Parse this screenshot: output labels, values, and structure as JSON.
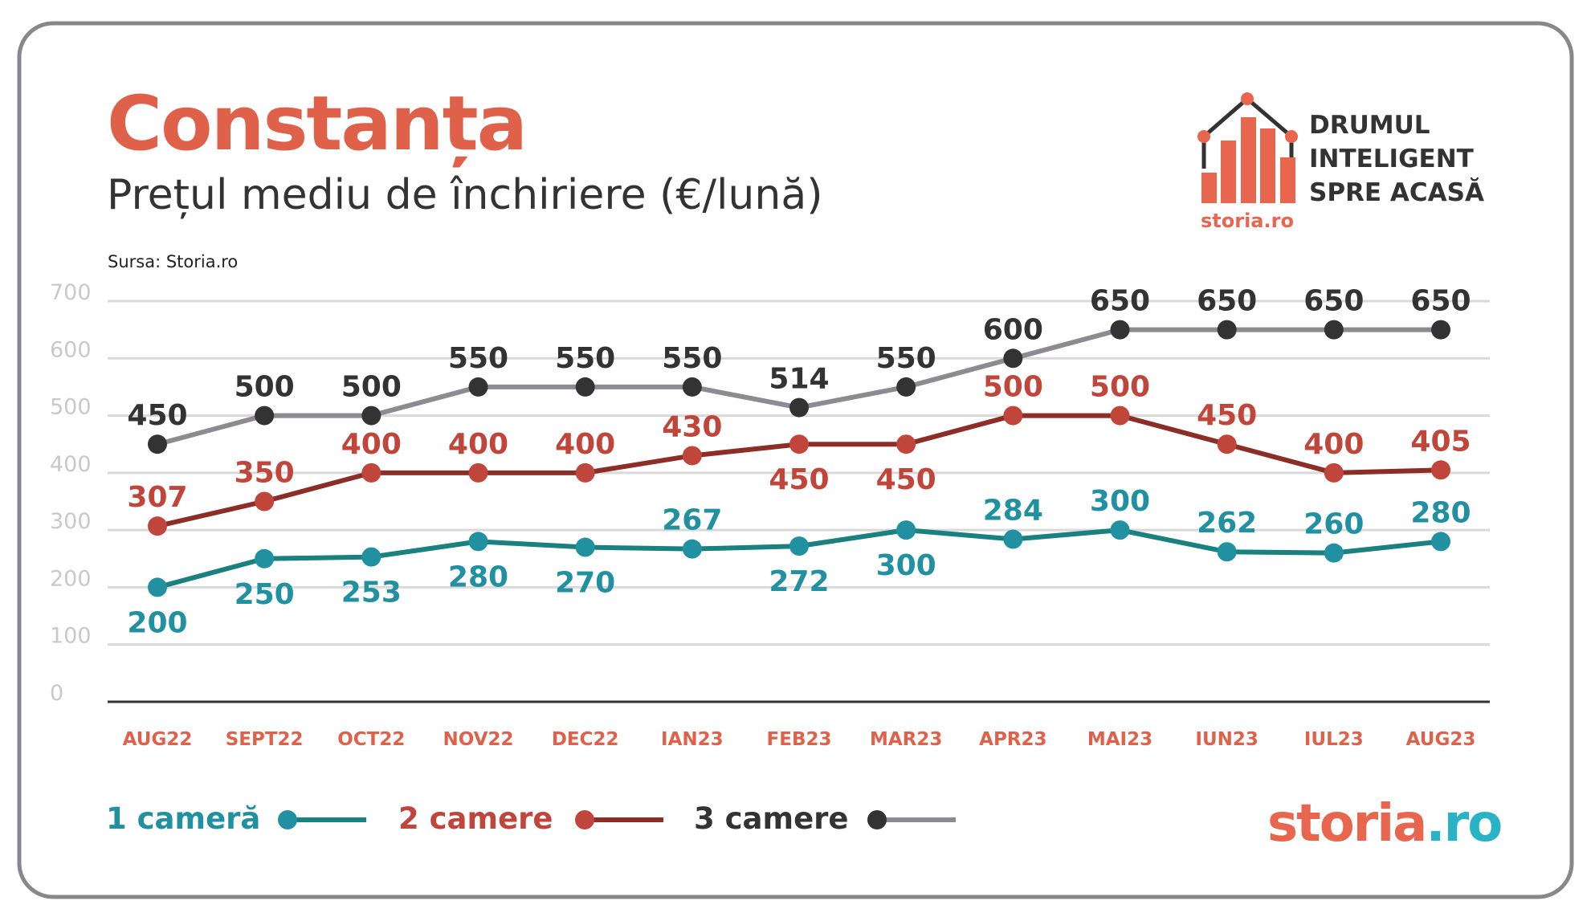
{
  "header": {
    "title": "Constanța",
    "subtitle": "Prețul mediu de închiriere (€/lună)",
    "source": "Sursa: Storia.ro"
  },
  "brand": {
    "logo_lines": [
      "DRUMUL",
      "INTELIGENT",
      "SPRE ACASĂ"
    ],
    "logo_small_text": "storia.ro",
    "footer_logo_main": "storia",
    "footer_logo_tld": ".ro"
  },
  "colors": {
    "accent": "#e0614a",
    "teal": "#2190a0",
    "teal_line": "#1b8080",
    "red": "#c0453a",
    "red_line": "#8b2e27",
    "dark": "#333333",
    "grey_line": "#8e8a92",
    "grid": "#d9d9d9",
    "border": "#8a878c"
  },
  "chart_data": {
    "type": "line",
    "title": "Constanța",
    "subtitle": "Prețul mediu de închiriere (€/lună)",
    "xlabel": "",
    "ylabel": "",
    "ylim": [
      0,
      700
    ],
    "yticks": [
      0,
      100,
      200,
      300,
      400,
      500,
      600,
      700
    ],
    "grid": true,
    "legend_position": "bottom-left",
    "categories": [
      "AUG22",
      "SEPT22",
      "OCT22",
      "NOV22",
      "DEC22",
      "IAN23",
      "FEB23",
      "MAR23",
      "APR23",
      "MAI23",
      "IUN23",
      "IUL23",
      "AUG23"
    ],
    "series": [
      {
        "name": "1 cameră",
        "values": [
          200,
          250,
          253,
          280,
          270,
          267,
          272,
          300,
          284,
          300,
          262,
          260,
          280
        ]
      },
      {
        "name": "2 camere",
        "values": [
          307,
          350,
          400,
          400,
          400,
          430,
          450,
          450,
          500,
          500,
          450,
          400,
          405
        ]
      },
      {
        "name": "3 camere",
        "values": [
          450,
          500,
          500,
          550,
          550,
          550,
          514,
          550,
          600,
          650,
          650,
          650,
          650
        ]
      }
    ]
  }
}
